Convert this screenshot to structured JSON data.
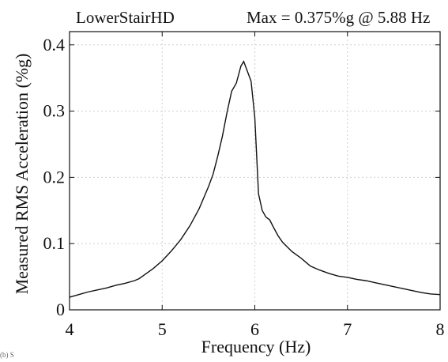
{
  "chart_data": {
    "type": "line",
    "title_left": "LowerStairHD",
    "title_right": "Max = 0.375%g @ 5.88 Hz",
    "xlabel": "Frequency (Hz)",
    "ylabel": "Measured RMS Acceleration (%g)",
    "corner_note": "(b) S",
    "xlim": [
      4,
      8
    ],
    "ylim": [
      0,
      0.42
    ],
    "xticks": [
      4,
      5,
      6,
      7,
      8
    ],
    "yticks": [
      0,
      0.1,
      0.2,
      0.3,
      0.4
    ],
    "xtick_labels": [
      "4",
      "5",
      "6",
      "7",
      "8"
    ],
    "ytick_labels": [
      "0",
      "0.1",
      "0.2",
      "0.3",
      "0.4"
    ],
    "grid": true,
    "line_color": "#111111",
    "grid_color": "#cfcfcf",
    "series": [
      {
        "x": [
          4.0,
          4.1,
          4.2,
          4.3,
          4.4,
          4.5,
          4.6,
          4.7,
          4.75,
          4.8,
          4.9,
          5.0,
          5.1,
          5.2,
          5.3,
          5.4,
          5.5,
          5.55,
          5.6,
          5.65,
          5.7,
          5.75,
          5.8,
          5.85,
          5.88,
          5.92,
          5.96,
          6.0,
          6.04,
          6.08,
          6.12,
          6.16,
          6.2,
          6.25,
          6.3,
          6.35,
          6.4,
          6.45,
          6.5,
          6.55,
          6.6,
          6.7,
          6.8,
          6.9,
          7.0,
          7.1,
          7.2,
          7.3,
          7.4,
          7.5,
          7.6,
          7.7,
          7.8,
          7.9,
          8.0
        ],
        "y": [
          0.019,
          0.023,
          0.027,
          0.03,
          0.033,
          0.037,
          0.04,
          0.044,
          0.047,
          0.052,
          0.062,
          0.074,
          0.089,
          0.106,
          0.127,
          0.153,
          0.186,
          0.205,
          0.232,
          0.262,
          0.298,
          0.33,
          0.342,
          0.368,
          0.375,
          0.36,
          0.345,
          0.29,
          0.175,
          0.15,
          0.14,
          0.136,
          0.125,
          0.112,
          0.102,
          0.095,
          0.088,
          0.083,
          0.078,
          0.072,
          0.066,
          0.06,
          0.055,
          0.051,
          0.049,
          0.046,
          0.044,
          0.041,
          0.038,
          0.035,
          0.032,
          0.029,
          0.026,
          0.024,
          0.023
        ]
      }
    ]
  }
}
